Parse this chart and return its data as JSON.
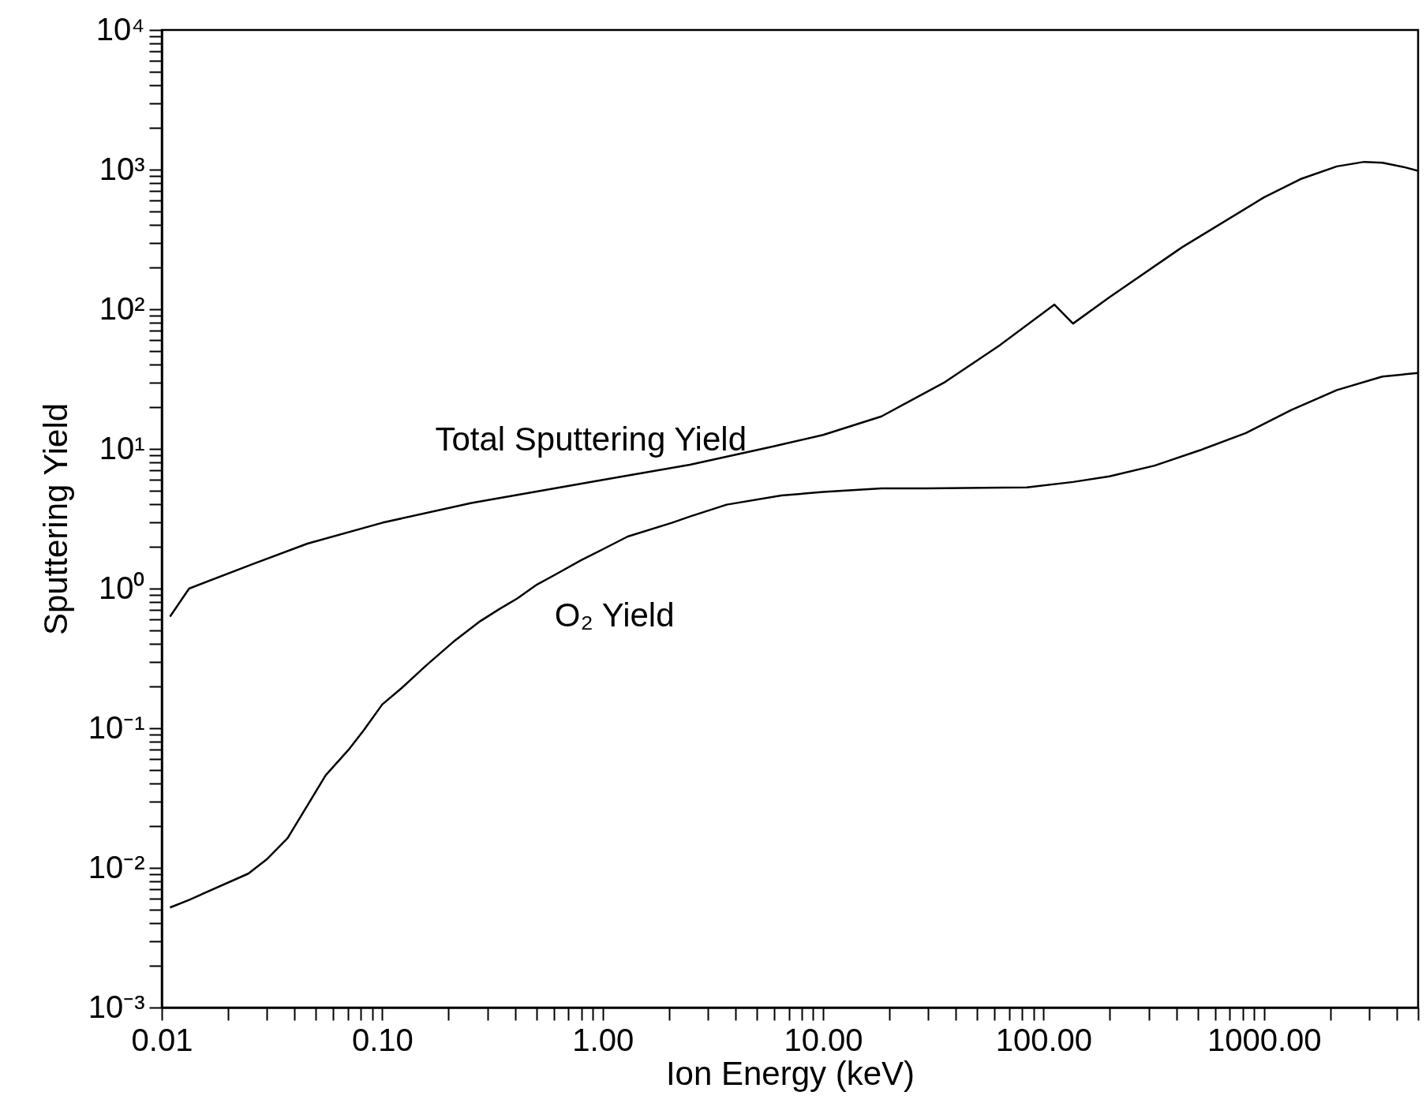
{
  "chart_data": {
    "type": "line",
    "xlabel": "Ion Energy (keV)",
    "ylabel": "Sputtering Yield",
    "log": "xy",
    "xlim": [
      0.01,
      5000
    ],
    "ylim": [
      0.001,
      10000
    ],
    "xticks": [
      {
        "value": 0.01,
        "label": "0.01"
      },
      {
        "value": 0.02,
        "label": null
      },
      {
        "value": 0.03,
        "label": null
      },
      {
        "value": 0.04,
        "label": null
      },
      {
        "value": 0.05,
        "label": null
      },
      {
        "value": 0.06,
        "label": null
      },
      {
        "value": 0.07,
        "label": null
      },
      {
        "value": 0.08,
        "label": null
      },
      {
        "value": 0.09,
        "label": null
      },
      {
        "value": 0.1,
        "label": "0.10"
      },
      {
        "value": 0.2,
        "label": null
      },
      {
        "value": 0.3,
        "label": null
      },
      {
        "value": 0.4,
        "label": null
      },
      {
        "value": 0.5,
        "label": null
      },
      {
        "value": 0.6,
        "label": null
      },
      {
        "value": 0.7,
        "label": null
      },
      {
        "value": 0.8,
        "label": null
      },
      {
        "value": 0.9,
        "label": null
      },
      {
        "value": 1,
        "label": "1.00"
      },
      {
        "value": 2,
        "label": null
      },
      {
        "value": 3,
        "label": null
      },
      {
        "value": 4,
        "label": null
      },
      {
        "value": 5,
        "label": null
      },
      {
        "value": 6,
        "label": null
      },
      {
        "value": 7,
        "label": null
      },
      {
        "value": 8,
        "label": null
      },
      {
        "value": 9,
        "label": null
      },
      {
        "value": 10,
        "label": "10.00"
      },
      {
        "value": 20,
        "label": null
      },
      {
        "value": 30,
        "label": null
      },
      {
        "value": 40,
        "label": null
      },
      {
        "value": 50,
        "label": null
      },
      {
        "value": 60,
        "label": null
      },
      {
        "value": 70,
        "label": null
      },
      {
        "value": 80,
        "label": null
      },
      {
        "value": 90,
        "label": null
      },
      {
        "value": 100,
        "label": "100.00"
      },
      {
        "value": 200,
        "label": null
      },
      {
        "value": 300,
        "label": null
      },
      {
        "value": 400,
        "label": null
      },
      {
        "value": 500,
        "label": null
      },
      {
        "value": 600,
        "label": null
      },
      {
        "value": 700,
        "label": null
      },
      {
        "value": 800,
        "label": null
      },
      {
        "value": 900,
        "label": null
      },
      {
        "value": 1000,
        "label": "1000.00"
      },
      {
        "value": 2000,
        "label": null
      },
      {
        "value": 3000,
        "label": null
      },
      {
        "value": 4000,
        "label": null
      },
      {
        "value": 5000,
        "label": null
      }
    ],
    "yticks": [
      {
        "value": 0.001,
        "label": "10⁻³"
      },
      {
        "value": 0.002,
        "label": null
      },
      {
        "value": 0.003,
        "label": null
      },
      {
        "value": 0.004,
        "label": null
      },
      {
        "value": 0.005,
        "label": null
      },
      {
        "value": 0.006,
        "label": null
      },
      {
        "value": 0.007,
        "label": null
      },
      {
        "value": 0.008,
        "label": null
      },
      {
        "value": 0.009,
        "label": null
      },
      {
        "value": 0.01,
        "label": "10⁻²"
      },
      {
        "value": 0.02,
        "label": null
      },
      {
        "value": 0.03,
        "label": null
      },
      {
        "value": 0.04,
        "label": null
      },
      {
        "value": 0.05,
        "label": null
      },
      {
        "value": 0.06,
        "label": null
      },
      {
        "value": 0.07,
        "label": null
      },
      {
        "value": 0.08,
        "label": null
      },
      {
        "value": 0.09,
        "label": null
      },
      {
        "value": 0.1,
        "label": "10⁻¹"
      },
      {
        "value": 0.2,
        "label": null
      },
      {
        "value": 0.3,
        "label": null
      },
      {
        "value": 0.4,
        "label": null
      },
      {
        "value": 0.5,
        "label": null
      },
      {
        "value": 0.6,
        "label": null
      },
      {
        "value": 0.7,
        "label": null
      },
      {
        "value": 0.8,
        "label": null
      },
      {
        "value": 0.9,
        "label": null
      },
      {
        "value": 1,
        "label": "10⁰"
      },
      {
        "value": 2,
        "label": null
      },
      {
        "value": 3,
        "label": null
      },
      {
        "value": 4,
        "label": null
      },
      {
        "value": 5,
        "label": null
      },
      {
        "value": 6,
        "label": null
      },
      {
        "value": 7,
        "label": null
      },
      {
        "value": 8,
        "label": null
      },
      {
        "value": 9,
        "label": null
      },
      {
        "value": 10,
        "label": "10¹"
      },
      {
        "value": 20,
        "label": null
      },
      {
        "value": 30,
        "label": null
      },
      {
        "value": 40,
        "label": null
      },
      {
        "value": 50,
        "label": null
      },
      {
        "value": 60,
        "label": null
      },
      {
        "value": 70,
        "label": null
      },
      {
        "value": 80,
        "label": null
      },
      {
        "value": 90,
        "label": null
      },
      {
        "value": 100,
        "label": "10²"
      },
      {
        "value": 200,
        "label": null
      },
      {
        "value": 300,
        "label": null
      },
      {
        "value": 400,
        "label": null
      },
      {
        "value": 500,
        "label": null
      },
      {
        "value": 600,
        "label": null
      },
      {
        "value": 700,
        "label": null
      },
      {
        "value": 800,
        "label": null
      },
      {
        "value": 900,
        "label": null
      },
      {
        "value": 1000,
        "label": "10³"
      },
      {
        "value": 2000,
        "label": null
      },
      {
        "value": 3000,
        "label": null
      },
      {
        "value": 4000,
        "label": null
      },
      {
        "value": 5000,
        "label": null
      },
      {
        "value": 6000,
        "label": null
      },
      {
        "value": 7000,
        "label": null
      },
      {
        "value": 8000,
        "label": null
      },
      {
        "value": 9000,
        "label": null
      },
      {
        "value": 10000,
        "label": "10⁴"
      }
    ],
    "grid": false,
    "line_style": "solid",
    "marker": "none",
    "series": [
      {
        "name": "Total Sputtering Yield",
        "color": "#000000",
        "x": [
          0.0109,
          0.0133,
          0.0259,
          0.0458,
          0.1,
          0.254,
          1,
          2.49,
          5.9,
          10,
          18.4,
          35.8,
          63,
          112,
          136,
          199,
          425,
          1000,
          1463,
          2141,
          2850,
          3445,
          4365,
          5000
        ],
        "values": [
          0.63,
          1.0,
          1.5,
          2.1,
          2.96,
          4.1,
          6.0,
          7.7,
          10.4,
          12.6,
          17.1,
          30.2,
          55,
          108,
          79,
          122,
          278,
          633,
          855,
          1055,
          1137,
          1120,
          1038,
          980
        ]
      },
      {
        "name": "O₂ Yield",
        "color": "#000000",
        "x": [
          0.0109,
          0.0133,
          0.0247,
          0.0299,
          0.0372,
          0.0554,
          0.0703,
          0.0826,
          0.1,
          0.122,
          0.158,
          0.21,
          0.279,
          0.338,
          0.41,
          0.504,
          0.61,
          0.8,
          1,
          1.3,
          2.06,
          2.49,
          3.65,
          6.46,
          10,
          18.4,
          29.6,
          84,
          136,
          199,
          319,
          514,
          827,
          1330,
          2141,
          3445,
          5000
        ],
        "values": [
          0.0052,
          0.0059,
          0.0091,
          0.0115,
          0.0163,
          0.046,
          0.07,
          0.097,
          0.148,
          0.193,
          0.281,
          0.415,
          0.586,
          0.71,
          0.85,
          1.07,
          1.26,
          1.6,
          1.91,
          2.36,
          2.96,
          3.28,
          3.99,
          4.64,
          4.92,
          5.22,
          5.22,
          5.3,
          5.8,
          6.36,
          7.6,
          9.8,
          13.0,
          19.0,
          26.4,
          33,
          35
        ]
      }
    ]
  }
}
